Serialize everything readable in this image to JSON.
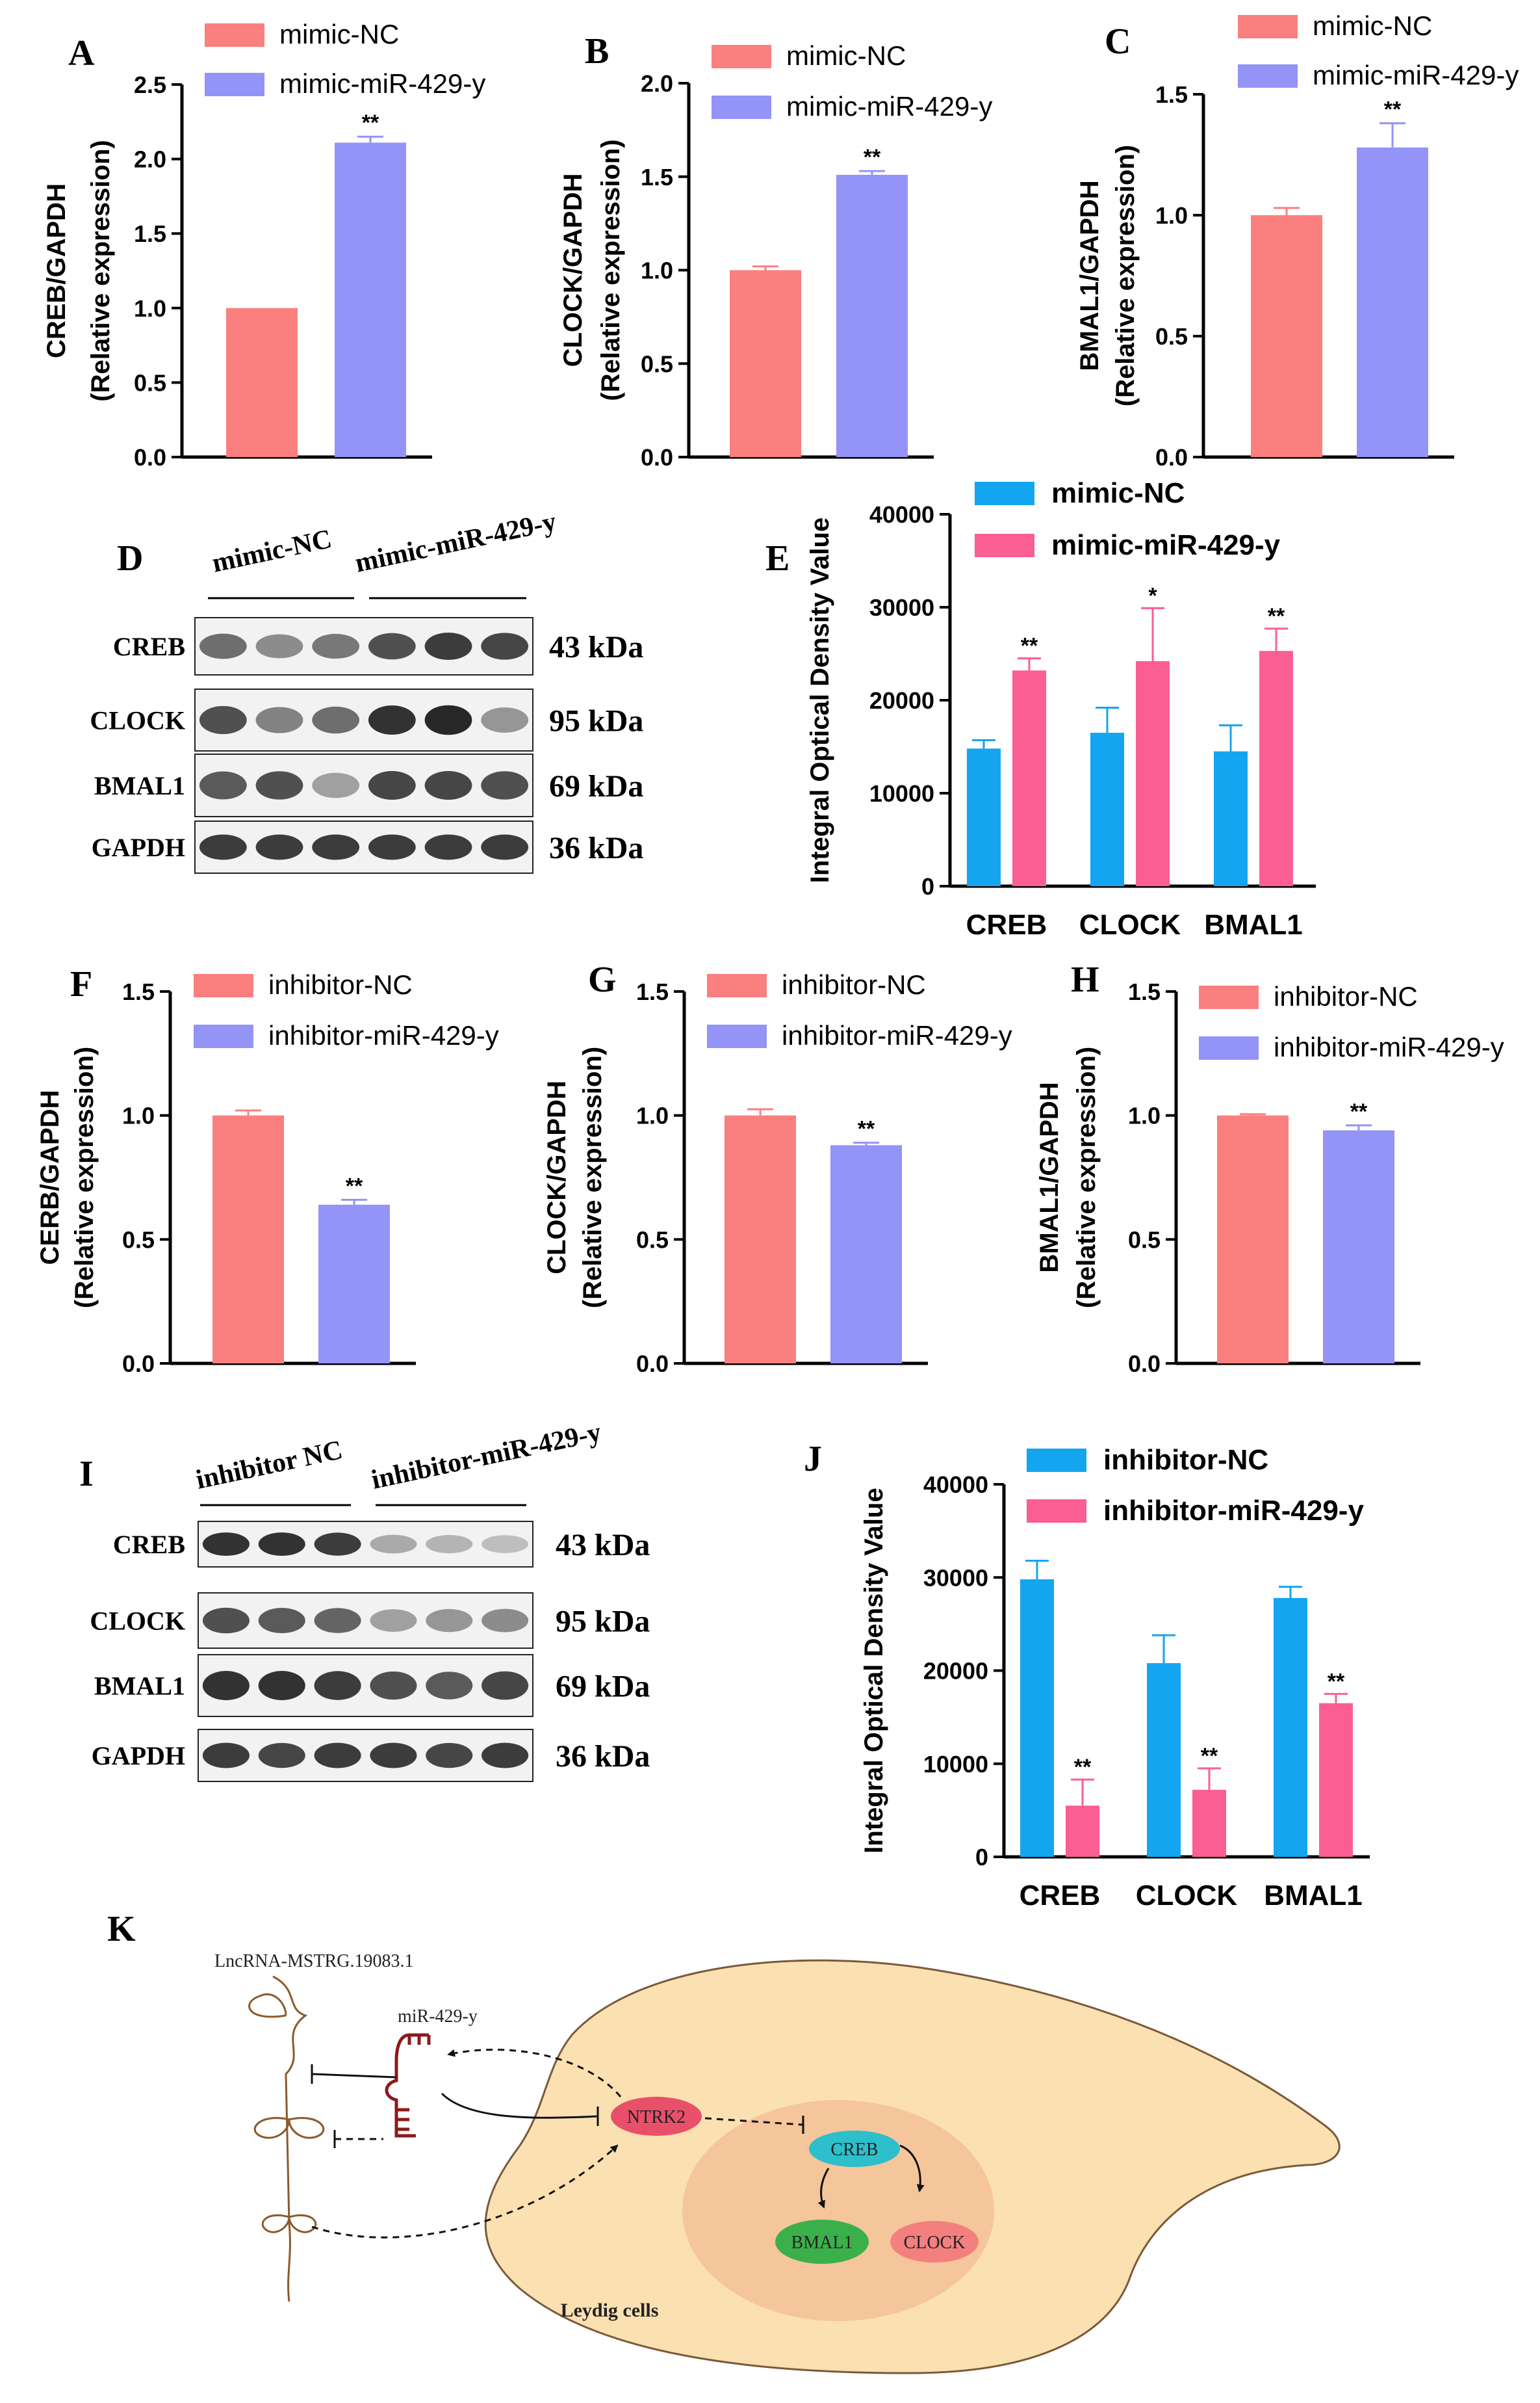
{
  "figure": {
    "panel_letters": {
      "A": "A",
      "B": "B",
      "C": "C",
      "D": "D",
      "E": "E",
      "F": "F",
      "G": "G",
      "H": "H",
      "I": "I",
      "J": "J",
      "K": "K"
    }
  },
  "colors": {
    "nc_red": "#FA7F7F",
    "mimic_blue": "#9493F7",
    "wb_blue": "#14A5F0",
    "wb_pink": "#FA5E93",
    "cell_fill": "#FBE0B2",
    "nucleus_fill": "#F4C49A",
    "ntrk2": "#E8506A",
    "creb": "#2DBFCB",
    "bmal1": "#3BB04A",
    "clock": "#F47F7F",
    "lnc": "#8B5A2B",
    "mir": "#8B1A1A"
  },
  "chart_data": [
    {
      "panel": "A",
      "type": "bar",
      "categories": [
        "mimic-NC",
        "mimic-miR-429-y"
      ],
      "values": [
        1.0,
        2.11
      ],
      "errors": [
        0.0,
        0.04
      ],
      "significance": [
        "",
        "**"
      ],
      "legend": [
        "mimic-NC",
        "mimic-miR-429-y"
      ],
      "ylabel_line1": "CREB/GAPDH",
      "ylabel_line2": "(Relative expression)",
      "ylim": [
        0,
        2.5
      ],
      "ticks": [
        0.0,
        0.5,
        1.0,
        1.5,
        2.0,
        2.5
      ],
      "tick_labels": [
        "0.0",
        "0.5",
        "1.0",
        "1.5",
        "2.0",
        "2.5"
      ]
    },
    {
      "panel": "B",
      "type": "bar",
      "categories": [
        "mimic-NC",
        "mimic-miR-429-y"
      ],
      "values": [
        1.0,
        1.51
      ],
      "errors": [
        0.02,
        0.02
      ],
      "significance": [
        "",
        "**"
      ],
      "legend": [
        "mimic-NC",
        "mimic-miR-429-y"
      ],
      "ylabel_line1": "CLOCK/GAPDH",
      "ylabel_line2": "(Relative expression)",
      "ylim": [
        0,
        2.0
      ],
      "ticks": [
        0.0,
        0.5,
        1.0,
        1.5,
        2.0
      ],
      "tick_labels": [
        "0.0",
        "0.5",
        "1.0",
        "1.5",
        "2.0"
      ]
    },
    {
      "panel": "C",
      "type": "bar",
      "categories": [
        "mimic-NC",
        "mimic-miR-429-y"
      ],
      "values": [
        1.0,
        1.28
      ],
      "errors": [
        0.03,
        0.1
      ],
      "significance": [
        "",
        "**"
      ],
      "legend": [
        "mimic-NC",
        "mimic-miR-429-y"
      ],
      "ylabel_line1": "BMAL1/GAPDH",
      "ylabel_line2": "(Relative expression)",
      "ylim": [
        0,
        1.5
      ],
      "ticks": [
        0.0,
        0.5,
        1.0,
        1.5
      ],
      "tick_labels": [
        "0.0",
        "0.5",
        "1.0",
        "1.5"
      ]
    },
    {
      "panel": "E",
      "type": "bar",
      "categories": [
        "CREB",
        "CLOCK",
        "BMAL1"
      ],
      "series": [
        {
          "name": "mimic-NC",
          "values": [
            14800,
            16500,
            14500
          ],
          "errors": [
            900,
            2700,
            2800
          ],
          "significance": [
            "",
            "",
            ""
          ]
        },
        {
          "name": "mimic-miR-429-y",
          "values": [
            23200,
            24200,
            25300
          ],
          "errors": [
            1300,
            5700,
            2400
          ],
          "significance": [
            "**",
            "*",
            "**"
          ]
        }
      ],
      "ylabel": "Integral Optical Density Value",
      "ylim": [
        0,
        40000
      ],
      "ticks": [
        0,
        10000,
        20000,
        30000,
        40000
      ],
      "tick_labels": [
        "0",
        "10000",
        "20000",
        "30000",
        "40000"
      ]
    },
    {
      "panel": "F",
      "type": "bar",
      "categories": [
        "inhibitor-NC",
        "inhibitor-miR-429-y"
      ],
      "values": [
        1.0,
        0.64
      ],
      "errors": [
        0.02,
        0.02
      ],
      "significance": [
        "",
        "**"
      ],
      "legend": [
        "inhibitor-NC",
        "inhibitor-miR-429-y"
      ],
      "ylabel_line1": "CERB/GAPDH",
      "ylabel_line2": "(Relative expression)",
      "ylim": [
        0,
        1.5
      ],
      "ticks": [
        0.0,
        0.5,
        1.0,
        1.5
      ],
      "tick_labels": [
        "0.0",
        "0.5",
        "1.0",
        "1.5"
      ]
    },
    {
      "panel": "G",
      "type": "bar",
      "categories": [
        "inhibitor-NC",
        "inhibitor-miR-429-y"
      ],
      "values": [
        1.0,
        0.88
      ],
      "errors": [
        0.025,
        0.01
      ],
      "significance": [
        "",
        "**"
      ],
      "legend": [
        "inhibitor-NC",
        "inhibitor-miR-429-y"
      ],
      "ylabel_line1": "CLOCK/GAPDH",
      "ylabel_line2": "(Relative expression)",
      "ylim": [
        0,
        1.5
      ],
      "ticks": [
        0.0,
        0.5,
        1.0,
        1.5
      ],
      "tick_labels": [
        "0.0",
        "0.5",
        "1.0",
        "1.5"
      ]
    },
    {
      "panel": "H",
      "type": "bar",
      "categories": [
        "inhibitor-NC",
        "inhibitor-miR-429-y"
      ],
      "values": [
        1.0,
        0.94
      ],
      "errors": [
        0.005,
        0.02
      ],
      "significance": [
        "",
        "**"
      ],
      "legend": [
        "inhibitor-NC",
        "inhibitor-miR-429-y"
      ],
      "ylabel_line1": "BMAL1/GAPDH",
      "ylabel_line2": "(Relative expression)",
      "ylim": [
        0,
        1.5
      ],
      "ticks": [
        0.0,
        0.5,
        1.0,
        1.5
      ],
      "tick_labels": [
        "0.0",
        "0.5",
        "1.0",
        "1.5"
      ]
    },
    {
      "panel": "J",
      "type": "bar",
      "categories": [
        "CREB",
        "CLOCK",
        "BMAL1"
      ],
      "series": [
        {
          "name": "inhibitor-NC",
          "values": [
            29800,
            20800,
            27800
          ],
          "errors": [
            2000,
            3000,
            1200
          ],
          "significance": [
            "",
            "",
            ""
          ]
        },
        {
          "name": "inhibitor-miR-429-y",
          "values": [
            5500,
            7200,
            16500
          ],
          "errors": [
            2800,
            2300,
            1000
          ],
          "significance": [
            "**",
            "**",
            "**"
          ]
        }
      ],
      "ylabel": "Integral Optical Density Value",
      "ylim": [
        0,
        40000
      ],
      "ticks": [
        0,
        10000,
        20000,
        30000,
        40000
      ],
      "tick_labels": [
        "0",
        "10000",
        "20000",
        "30000",
        "40000"
      ]
    }
  ],
  "blots": {
    "D": {
      "group1": "mimic-NC",
      "group2": "mimic-miR-429-y",
      "rows": [
        {
          "label": "CREB",
          "kda": "43 kDa",
          "intensity": [
            0.6,
            0.45,
            0.55,
            0.75,
            0.85,
            0.8
          ]
        },
        {
          "label": "CLOCK",
          "kda": "95 kDa",
          "intensity": [
            0.75,
            0.5,
            0.6,
            0.9,
            0.95,
            0.4
          ]
        },
        {
          "label": "BMAL1",
          "kda": "69 kDa",
          "intensity": [
            0.7,
            0.75,
            0.35,
            0.8,
            0.8,
            0.75
          ]
        },
        {
          "label": "GAPDH",
          "kda": "36 kDa",
          "intensity": [
            0.85,
            0.85,
            0.85,
            0.85,
            0.85,
            0.85
          ]
        }
      ]
    },
    "I": {
      "group1": "inhibitor NC",
      "group2": "inhibitor-miR-429-y",
      "rows": [
        {
          "label": "CREB",
          "kda": "43 kDa",
          "intensity": [
            0.9,
            0.9,
            0.85,
            0.3,
            0.25,
            0.2
          ]
        },
        {
          "label": "CLOCK",
          "kda": "95 kDa",
          "intensity": [
            0.75,
            0.7,
            0.65,
            0.35,
            0.4,
            0.45
          ]
        },
        {
          "label": "BMAL1",
          "kda": "69 kDa",
          "intensity": [
            0.9,
            0.9,
            0.85,
            0.75,
            0.7,
            0.8
          ]
        },
        {
          "label": "GAPDH",
          "kda": "36 kDa",
          "intensity": [
            0.85,
            0.8,
            0.85,
            0.85,
            0.8,
            0.85
          ]
        }
      ]
    }
  },
  "diagram": {
    "lncrna": "LncRNA-MSTRG.19083.1",
    "mirna": "miR-429-y",
    "ntrk2": "NTRK2",
    "creb": "CREB",
    "bmal1": "BMAL1",
    "clock": "CLOCK",
    "cell": "Leydig cells"
  }
}
